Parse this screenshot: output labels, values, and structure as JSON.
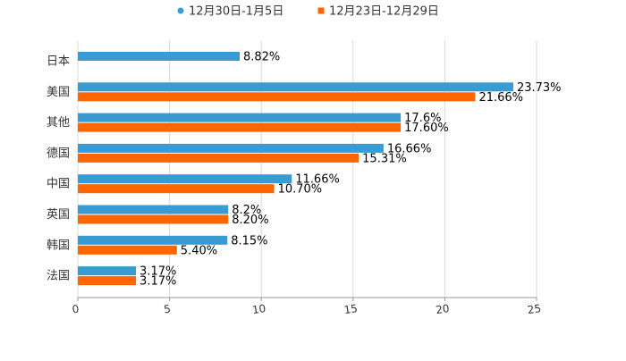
{
  "chart_data": {
    "type": "bar",
    "orientation": "horizontal",
    "title": "",
    "xlabel": "",
    "ylabel": "",
    "xlim": [
      0,
      25
    ],
    "ticks": [
      "0",
      "5",
      "10",
      "15",
      "20",
      "25"
    ],
    "tick_values": [
      0,
      5,
      10,
      15,
      20,
      25
    ],
    "grid": true,
    "legend_position": "top-center",
    "categories": [
      "日本",
      "美国",
      "其他",
      "德国",
      "中国",
      "英国",
      "韩国",
      "法国"
    ],
    "series": [
      {
        "name": "12月30日-1月5日",
        "color": "#3a9bd2",
        "marker": "circle",
        "values": [
          8.82,
          23.73,
          17.6,
          16.66,
          11.66,
          8.2,
          8.15,
          3.17
        ],
        "labels": [
          "8.82%",
          "23.73%",
          "17.6%",
          "16.66%",
          "11.66%",
          "8.2%",
          "8.15%",
          "3.17%"
        ]
      },
      {
        "name": "12月23日-12月29日",
        "color": "#ff6600",
        "marker": "square",
        "values": [
          null,
          21.66,
          17.6,
          15.31,
          10.7,
          8.2,
          5.4,
          3.17
        ],
        "labels": [
          "",
          "21.66%",
          "17.60%",
          "15.31%",
          "10.70%",
          "8.20%",
          "5.40%",
          "3.17%"
        ]
      }
    ]
  }
}
